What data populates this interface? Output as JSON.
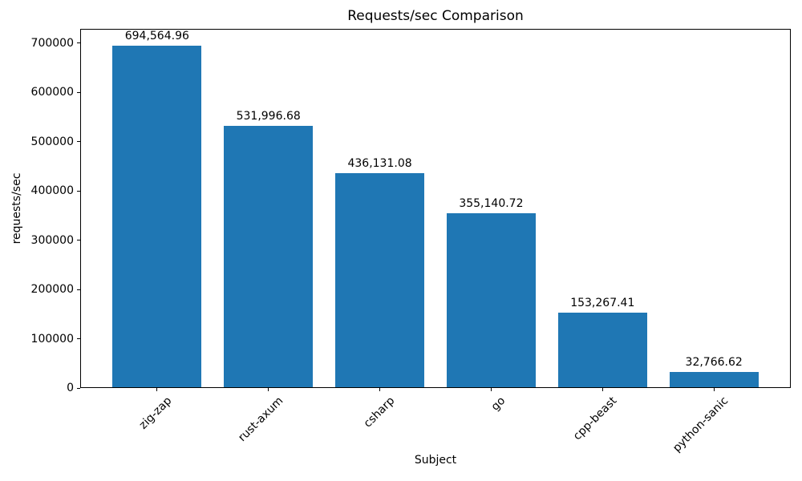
{
  "title": "Requests/sec Comparison",
  "chart_data": {
    "type": "bar",
    "title": "Requests/sec Comparison",
    "xlabel": "Subject",
    "ylabel": "requests/sec",
    "categories": [
      "zig-zap",
      "rust-axum",
      "csharp",
      "go",
      "cpp-beast",
      "python-sanic"
    ],
    "values": [
      694564.96,
      531996.68,
      436131.08,
      355140.72,
      153267.41,
      32766.62
    ],
    "value_labels": [
      "694,564.96",
      "531,996.68",
      "436,131.08",
      "355,140.72",
      "153,267.41",
      "32,766.62"
    ],
    "ytick_labels": [
      "0",
      "100000",
      "200000",
      "300000",
      "400000",
      "500000",
      "600000",
      "700000"
    ],
    "yticks": [
      0,
      100000,
      200000,
      300000,
      400000,
      500000,
      600000,
      700000
    ],
    "ylim": [
      0,
      729293
    ],
    "bar_color": "#1f77b4",
    "grid": false,
    "legend_position": "none"
  }
}
